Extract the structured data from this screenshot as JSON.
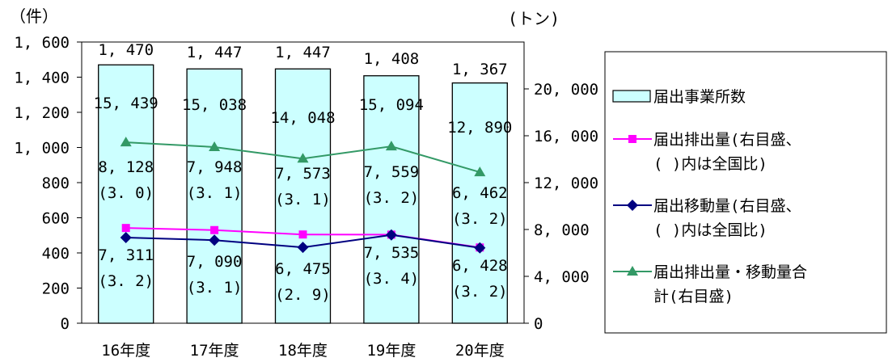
{
  "chart_data": {
    "type": "bar+line",
    "categories": [
      "16年度",
      "17年度",
      "18年度",
      "19年度",
      "20年度"
    ],
    "y_left": {
      "unit": "（件）",
      "ylim": [
        0,
        1600
      ],
      "ticks": [
        "0",
        "200",
        "400",
        "600",
        "800",
        "1, 000",
        "1, 200",
        "1, 400",
        "1, 600"
      ]
    },
    "y_right": {
      "unit": "(トン)",
      "ylim": [
        0,
        24000
      ],
      "ticks": [
        "0",
        "4, 000",
        "8, 000",
        "12, 000",
        "16, 000",
        "20, 000"
      ]
    },
    "bars": {
      "name": "届出事業所数",
      "color": "#ccffff",
      "axis": "left",
      "values": [
        1470,
        1447,
        1447,
        1408,
        1367
      ],
      "labels": [
        "1, 470",
        "1, 447",
        "1, 447",
        "1, 408",
        "1, 367"
      ]
    },
    "series": [
      {
        "name": "届出排出量(右目盛、\n( )内は全国比)",
        "color": "#ff00ff",
        "marker": "square",
        "axis": "right",
        "values": [
          8128,
          7948,
          7573,
          7559,
          6462
        ],
        "labels": [
          "8, 128",
          "7, 948",
          "7, 573",
          "7, 559",
          "6, 462"
        ],
        "ratios": [
          "(3. 0)",
          "(3. 1)",
          "(3. 1)",
          "(3. 2)",
          "(3. 2)"
        ]
      },
      {
        "name": "届出移動量(右目盛、\n( )内は全国比)",
        "color": "#000080",
        "marker": "diamond",
        "axis": "right",
        "values": [
          7311,
          7090,
          6475,
          7535,
          6428
        ],
        "labels": [
          "7, 311",
          "7, 090",
          "6, 475",
          "7, 535",
          "6, 428"
        ],
        "ratios": [
          "(3. 2)",
          "(3. 1)",
          "(2. 9)",
          "(3. 4)",
          "(3. 2)"
        ]
      },
      {
        "name": "届出排出量・移動量合\n計(右目盛)",
        "color": "#339966",
        "marker": "triangle",
        "axis": "right",
        "values": [
          15439,
          15038,
          14048,
          15094,
          12890
        ],
        "labels": [
          "15, 439",
          "15, 038",
          "14, 048",
          "15, 094",
          "12, 890"
        ]
      }
    ],
    "legend_position": "right"
  }
}
